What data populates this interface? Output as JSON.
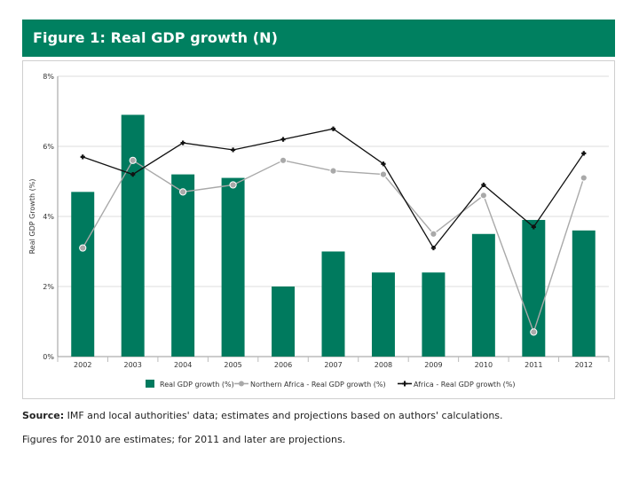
{
  "header": {
    "title": "Figure 1: Real GDP growth (N)"
  },
  "chart_data": {
    "type": "bar+line",
    "title": "Figure 1: Real GDP growth (N)",
    "ylabel": "Real GDP Growth (%)",
    "xlabel": "",
    "ylim": [
      0,
      8
    ],
    "yticks": [
      0,
      2,
      4,
      6,
      8
    ],
    "ytick_labels": [
      "0%",
      "2%",
      "4%",
      "6%",
      "8%"
    ],
    "grid": true,
    "legend_position": "bottom",
    "categories": [
      "2002",
      "2003",
      "2004",
      "2005",
      "2006",
      "2007",
      "2008",
      "2009",
      "2010",
      "2011",
      "2012"
    ],
    "series": [
      {
        "name": "Real GDP growth (%)",
        "kind": "bar",
        "color": "#007a5e",
        "values": [
          4.7,
          6.9,
          5.2,
          5.1,
          2.0,
          3.0,
          2.4,
          2.4,
          3.5,
          3.9,
          3.6
        ]
      },
      {
        "name": "Northern Africa - Real GDP growth (%)",
        "kind": "line",
        "color": "#a9a9a9",
        "values": [
          3.1,
          5.6,
          4.7,
          4.9,
          5.6,
          5.3,
          5.2,
          3.5,
          4.6,
          0.7,
          5.1
        ]
      },
      {
        "name": "Africa - Real GDP growth (%)",
        "kind": "line",
        "color": "#111111",
        "values": [
          5.7,
          5.2,
          6.1,
          5.9,
          6.2,
          6.5,
          5.5,
          3.1,
          4.9,
          3.7,
          5.8
        ]
      }
    ]
  },
  "footer": {
    "source_label": "Source:",
    "source_text": "IMF and local authorities' data; estimates and projections based on authors' calculations.",
    "note": "Figures for 2010 are estimates; for 2011 and later are projections."
  }
}
